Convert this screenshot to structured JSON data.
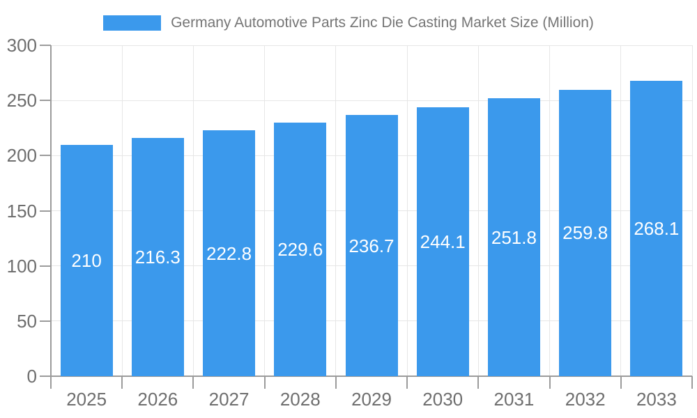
{
  "chart_data": {
    "type": "bar",
    "title": "Germany Automotive Parts Zinc Die Casting Market Size (Million)",
    "categories": [
      "2025",
      "2026",
      "2027",
      "2028",
      "2029",
      "2030",
      "2031",
      "2032",
      "2033"
    ],
    "series": [
      {
        "name": "Germany Automotive Parts Zinc Die Casting Market Size (Million)",
        "color": "#3B99EC",
        "values": [
          210,
          216.3,
          222.8,
          229.6,
          236.7,
          244.1,
          251.8,
          259.8,
          268.1
        ]
      }
    ],
    "xlabel": "",
    "ylabel": "",
    "ylim": [
      0,
      300
    ],
    "yticks": [
      0,
      50,
      100,
      150,
      200,
      250,
      300
    ],
    "grid": true,
    "legend_position": "top",
    "value_labels": {
      "position": "inside-center",
      "color": "#ffffff"
    }
  },
  "style": {
    "background": "#ffffff",
    "axis_color": "#9b9b9b",
    "grid_color": "#e6e6e6",
    "tick_text_color": "#6e6e6e",
    "title_text_color": "#757575"
  }
}
